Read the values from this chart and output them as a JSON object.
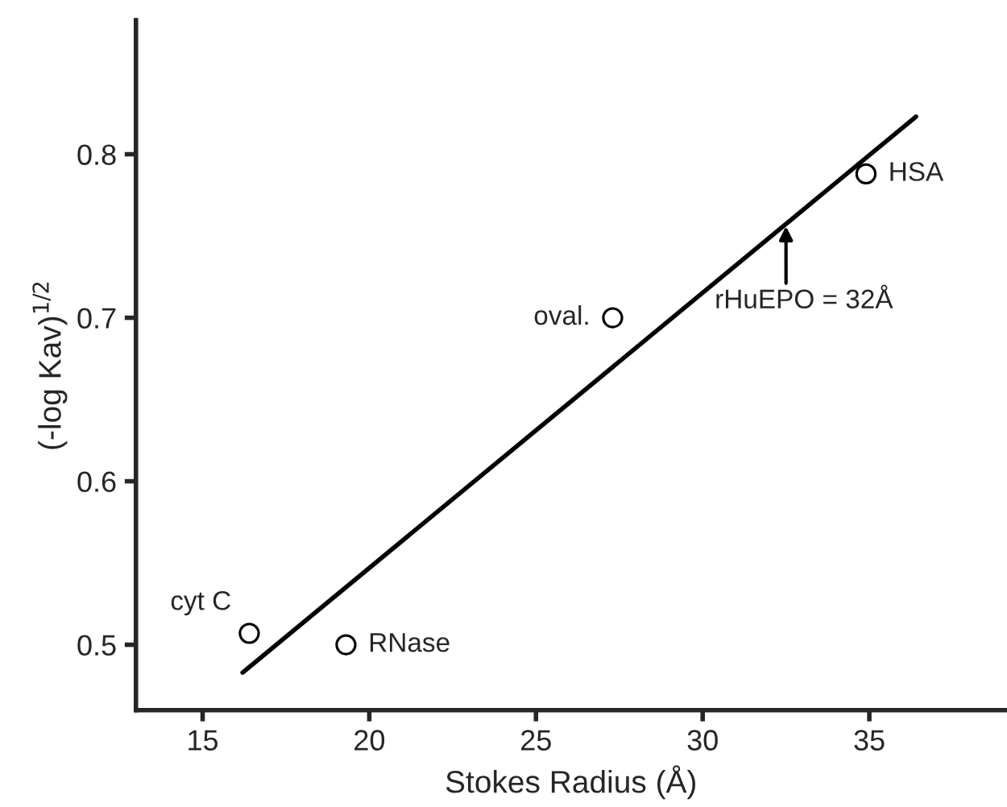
{
  "chart_data": {
    "type": "scatter",
    "xlabel": "Stokes Radius (Å)",
    "ylabel": "(-log Kav)$^{1/2}$",
    "xlim": [
      13,
      39.1
    ],
    "ylim": [
      0.46,
      0.882
    ],
    "xticks": [
      15,
      20,
      25,
      30,
      35
    ],
    "yticks": [
      0.5,
      0.6,
      0.7,
      0.8
    ],
    "grid": false,
    "legend": false,
    "marker": "circle",
    "series": [
      {
        "color": "#000000",
        "x": [
          16.4,
          19.3,
          27.3,
          34.9
        ],
        "values": [
          0.507,
          0.5,
          0.7,
          0.788
        ]
      },
      {
        "type": "line",
        "color": "#000000",
        "x": [
          16.2,
          36.4
        ],
        "values": [
          0.483,
          0.823
        ],
        "marker": "none",
        "line_style": "solid"
      }
    ],
    "annotations": [
      {
        "text": "cyt C",
        "x": 16.4,
        "y": 0.507
      },
      {
        "text": "RNase",
        "x": 19.3,
        "y": 0.5
      },
      {
        "text": "oval.",
        "x": 27.3,
        "y": 0.7
      },
      {
        "text": "HSA",
        "x": 34.9,
        "y": 0.788
      },
      {
        "text": "rHuEPO = 32Å",
        "x": 32.5,
        "y": 0.756
      }
    ]
  }
}
